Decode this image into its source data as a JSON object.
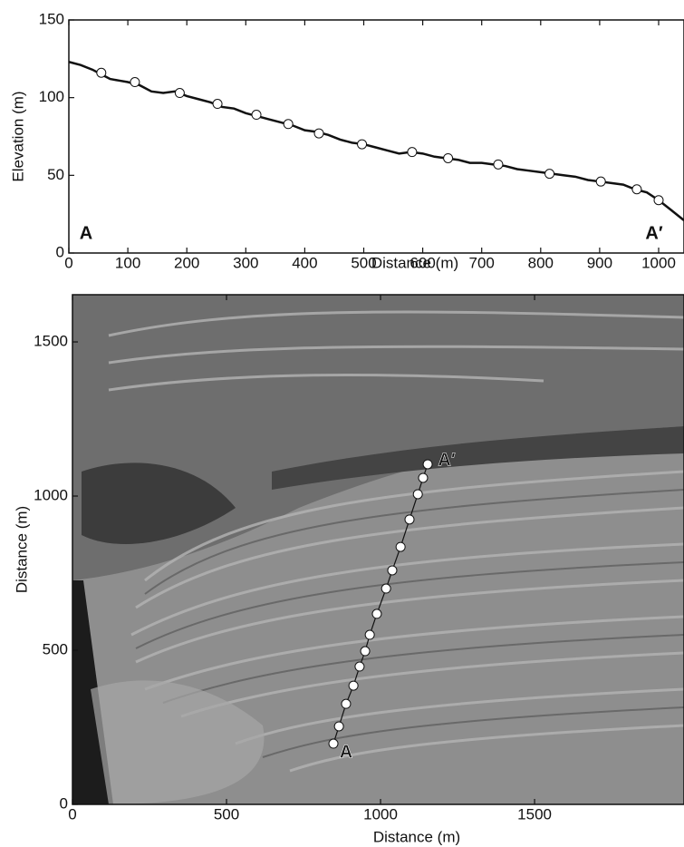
{
  "chart_data": [
    {
      "type": "line",
      "xlabel": "Distance (m)",
      "ylabel": "Elevation (m)",
      "xlim": [
        0,
        1043
      ],
      "ylim": [
        0,
        150
      ],
      "xticks": [
        0,
        100,
        200,
        300,
        400,
        500,
        600,
        700,
        800,
        900,
        1000
      ],
      "yticks": [
        0,
        50,
        100,
        150
      ],
      "annotations": [
        "A",
        "A′"
      ],
      "series": [
        {
          "color": "#111111",
          "x": [
            0,
            20,
            40,
            55,
            70,
            85,
            100,
            120,
            140,
            160,
            180,
            200,
            220,
            240,
            260,
            280,
            300,
            320,
            340,
            360,
            380,
            400,
            420,
            440,
            460,
            480,
            500,
            520,
            540,
            560,
            580,
            600,
            620,
            640,
            660,
            680,
            700,
            720,
            740,
            760,
            780,
            800,
            820,
            840,
            860,
            880,
            900,
            920,
            940,
            960,
            980,
            1000,
            1020,
            1043
          ],
          "values": [
            123,
            121,
            118,
            115,
            112,
            111,
            110,
            108,
            104,
            103,
            104,
            101,
            99,
            97,
            94,
            93,
            90,
            88,
            86,
            84,
            82,
            79,
            78,
            76,
            73,
            71,
            70,
            68,
            66,
            64,
            65,
            64,
            62,
            61,
            60,
            58,
            58,
            57,
            56,
            54,
            53,
            52,
            51,
            50,
            49,
            47,
            46,
            45,
            44,
            41,
            39,
            34,
            28,
            21
          ]
        },
        {
          "color": "#ffffff",
          "marker": "circle",
          "x": [
            55,
            112,
            188,
            252,
            318,
            372,
            424,
            497,
            582,
            643,
            728,
            815,
            902,
            963,
            1000
          ],
          "values": [
            116,
            110,
            103,
            96,
            89,
            83,
            77,
            70,
            65,
            61,
            57,
            51,
            46,
            41,
            34
          ]
        }
      ]
    },
    {
      "type": "scatter",
      "xlabel": "Distance (m)",
      "ylabel": "Distance (m)",
      "xlim": [
        0,
        1985
      ],
      "ylim": [
        0,
        1653
      ],
      "xticks": [
        0,
        500,
        1000,
        1500
      ],
      "yticks": [
        0,
        500,
        1000,
        1500
      ],
      "annotations": [
        "A",
        "A′"
      ],
      "series": [
        {
          "color": "#ffffff",
          "marker": "circle",
          "connect": true,
          "x": [
            847,
            865,
            888,
            912,
            932,
            950,
            965,
            988,
            1018,
            1038,
            1065,
            1094,
            1121,
            1138,
            1153
          ],
          "values": [
            197,
            253,
            326,
            385,
            447,
            497,
            550,
            618,
            700,
            759,
            835,
            924,
            1006,
            1059,
            1103
          ]
        }
      ]
    }
  ]
}
